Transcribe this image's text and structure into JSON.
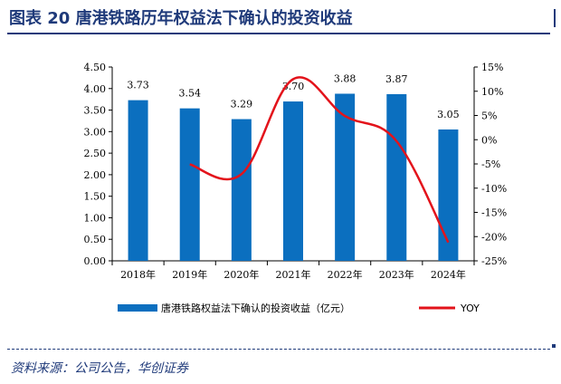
{
  "title": "图表 20   唐港铁路历年权益法下确认的投资收益",
  "source": "资料来源：公司公告，华创证券",
  "colors": {
    "bar": "#0b6fbf",
    "line": "#e3131b",
    "title": "#1f3a7a"
  },
  "chart_data": {
    "type": "bar",
    "categories": [
      "2018年",
      "2019年",
      "2020年",
      "2021年",
      "2022年",
      "2023年",
      "2024年"
    ],
    "series": [
      {
        "name": "唐港铁路权益法下确认的投资收益（亿元）",
        "type": "bar",
        "axis": "left",
        "values": [
          3.73,
          3.54,
          3.29,
          3.7,
          3.88,
          3.87,
          3.05
        ],
        "labels": [
          "3.73",
          "3.54",
          "3.29",
          "3.70",
          "3.88",
          "3.87",
          "3.05"
        ]
      },
      {
        "name": "YOY",
        "type": "line",
        "axis": "right",
        "values": [
          null,
          -5.1,
          -7.1,
          12.5,
          4.9,
          -0.3,
          -21.2
        ]
      }
    ],
    "y_left": {
      "ylim": [
        0,
        4.5
      ],
      "ticks": [
        "0.00",
        "0.50",
        "1.00",
        "1.50",
        "2.00",
        "2.50",
        "3.00",
        "3.50",
        "4.00",
        "4.50"
      ]
    },
    "y_right": {
      "ylim": [
        -25,
        15
      ],
      "ticks": [
        "-25%",
        "-20%",
        "-15%",
        "-10%",
        "-5%",
        "0%",
        "5%",
        "10%",
        "15%"
      ]
    },
    "grid": false,
    "legend": "bottom"
  }
}
